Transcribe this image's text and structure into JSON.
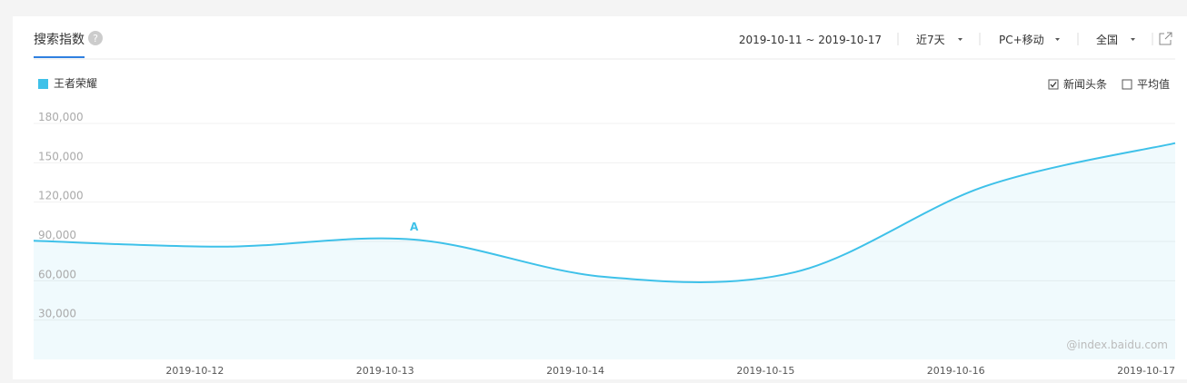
{
  "header": {
    "title": "搜索指数",
    "help": "?",
    "date_range": "2019-10-11 ~ 2019-10-17",
    "period": "近7天",
    "device": "PC+移动",
    "region": "全国"
  },
  "options": {
    "news": {
      "label": "新闻头条",
      "checked": true
    },
    "average": {
      "label": "平均值",
      "checked": false
    }
  },
  "watermark": "@index.baidu.com",
  "chart_data": {
    "type": "line",
    "x": [
      null,
      "2019-10-12",
      "2019-10-13",
      "2019-10-14",
      "2019-10-15",
      "2019-10-16",
      "2019-10-17"
    ],
    "series": [
      {
        "name": "王者荣耀",
        "color": "#3ec1e9",
        "values": [
          90500,
          86000,
          91400,
          63000,
          66500,
          132000,
          165000
        ]
      }
    ],
    "ylim": [
      0,
      180000
    ],
    "yticks": [
      {
        "value": 30000,
        "label": "30,000"
      },
      {
        "value": 60000,
        "label": "60,000"
      },
      {
        "value": 90000,
        "label": "90,000"
      },
      {
        "value": 120000,
        "label": "120,000"
      },
      {
        "value": 150000,
        "label": "150,000"
      },
      {
        "value": 180000,
        "label": "180,000"
      }
    ],
    "grid": true,
    "annotations": [
      {
        "text": "A",
        "index": 2
      }
    ]
  }
}
